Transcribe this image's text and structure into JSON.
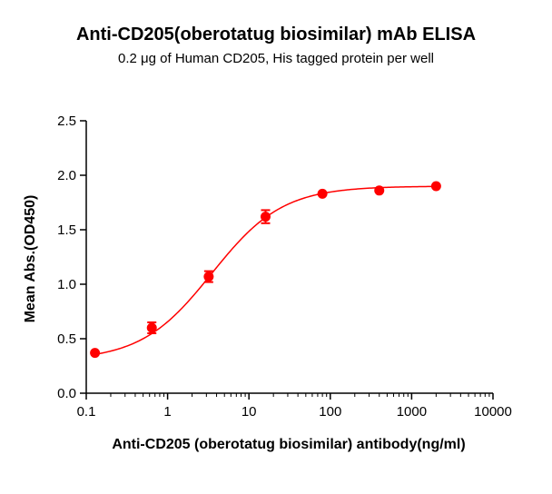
{
  "chart_data": {
    "type": "scatter",
    "title": "Anti-CD205(oberotatug biosimilar) mAb ELISA",
    "subtitle": "0.2 μg of Human CD205, His tagged protein per well",
    "xlabel": "Anti-CD205 (oberotatug biosimilar) antibody(ng/ml)",
    "ylabel": "Mean Abs.(OD450)",
    "x_scale": "log",
    "xlim": [
      0.1,
      10000
    ],
    "ylim": [
      0,
      2.5
    ],
    "x_ticks": [
      0.1,
      1,
      10,
      100,
      1000,
      10000
    ],
    "x_tick_labels": [
      "0.1",
      "1",
      "10",
      "100",
      "1000",
      "10000"
    ],
    "y_ticks": [
      0,
      0.5,
      1,
      1.5,
      2,
      2.5
    ],
    "y_tick_labels": [
      "0.0",
      "0.5",
      "1.0",
      "1.5",
      "2.0",
      "2.5"
    ],
    "grid": false,
    "color": "#ff0000",
    "series": [
      {
        "x": [
          0.128,
          0.64,
          3.2,
          16,
          80,
          400,
          2000
        ],
        "y": [
          0.37,
          0.6,
          1.07,
          1.62,
          1.83,
          1.86,
          1.9
        ],
        "error": [
          0.0,
          0.05,
          0.05,
          0.06,
          0.0,
          0.0,
          0.0
        ]
      }
    ],
    "fit": {
      "model": "4PL",
      "bottom": 0.3,
      "top": 1.9,
      "ec50": 3.5,
      "hill": 1.0,
      "x_range": [
        0.128,
        2000
      ]
    }
  }
}
